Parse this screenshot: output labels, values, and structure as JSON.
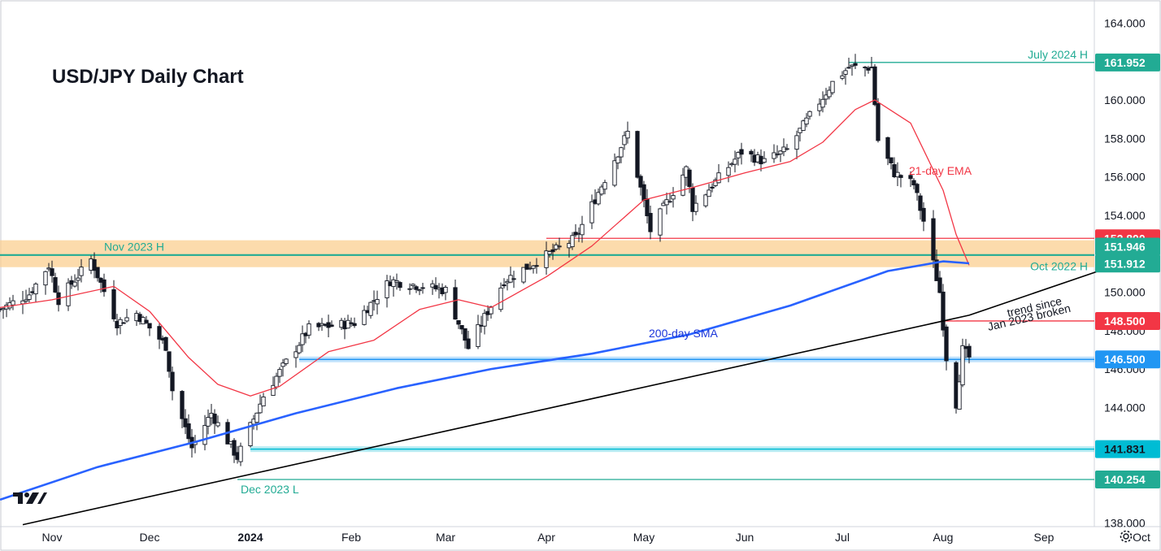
{
  "chart_data": {
    "type": "candlestick",
    "title": "USD/JPY Daily Chart",
    "ylim": [
      137.8,
      165.2
    ],
    "y_ticks": [
      138,
      140,
      142,
      144,
      146,
      148,
      150,
      152,
      154,
      156,
      158,
      160,
      162,
      164
    ],
    "y_tick_labels": [
      "138.000",
      "140.000",
      "142.000",
      "144.000",
      "146.000",
      "148.000",
      "150.000",
      "152.000",
      "154.000",
      "156.000",
      "158.000",
      "160.000",
      "162.000",
      "164.000"
    ],
    "x_range": [
      "2023-10-16",
      "2024-10-07"
    ],
    "x_ticks": [
      {
        "date": "2023-11-01",
        "label": "Nov"
      },
      {
        "date": "2023-12-01",
        "label": "Dec"
      },
      {
        "date": "2024-01-01",
        "label": "2024"
      },
      {
        "date": "2024-02-01",
        "label": "Feb"
      },
      {
        "date": "2024-03-01",
        "label": "Mar"
      },
      {
        "date": "2024-04-01",
        "label": "Apr"
      },
      {
        "date": "2024-05-01",
        "label": "May"
      },
      {
        "date": "2024-06-01",
        "label": "Jun"
      },
      {
        "date": "2024-07-01",
        "label": "Jul"
      },
      {
        "date": "2024-08-01",
        "label": "Aug"
      },
      {
        "date": "2024-09-01",
        "label": "Sep"
      },
      {
        "date": "2024-10-01",
        "label": "Oct"
      }
    ],
    "close_path": [
      {
        "date": "2023-10-16",
        "value": 149.1
      },
      {
        "date": "2023-10-25",
        "value": 149.9
      },
      {
        "date": "2023-10-31",
        "value": 151.4
      },
      {
        "date": "2023-11-03",
        "value": 149.6
      },
      {
        "date": "2023-11-13",
        "value": 151.7
      },
      {
        "date": "2023-11-21",
        "value": 148.4
      },
      {
        "date": "2023-11-27",
        "value": 148.9
      },
      {
        "date": "2023-12-06",
        "value": 147.2
      },
      {
        "date": "2023-12-08",
        "value": 144.9
      },
      {
        "date": "2023-12-14",
        "value": 141.9
      },
      {
        "date": "2023-12-20",
        "value": 143.7
      },
      {
        "date": "2023-12-28",
        "value": 141.4
      },
      {
        "date": "2024-01-05",
        "value": 144.6
      },
      {
        "date": "2024-01-19",
        "value": 148.1
      },
      {
        "date": "2024-02-02",
        "value": 148.4
      },
      {
        "date": "2024-02-13",
        "value": 150.6
      },
      {
        "date": "2024-03-01",
        "value": 150.1
      },
      {
        "date": "2024-03-08",
        "value": 147.1
      },
      {
        "date": "2024-03-19",
        "value": 150.6
      },
      {
        "date": "2024-04-10",
        "value": 152.8
      },
      {
        "date": "2024-04-26",
        "value": 158.3
      },
      {
        "date": "2024-05-03",
        "value": 153.2
      },
      {
        "date": "2024-05-14",
        "value": 156.4
      },
      {
        "date": "2024-05-16",
        "value": 154.4
      },
      {
        "date": "2024-05-31",
        "value": 157.3
      },
      {
        "date": "2024-06-07",
        "value": 156.8
      },
      {
        "date": "2024-06-14",
        "value": 157.4
      },
      {
        "date": "2024-06-28",
        "value": 160.9
      },
      {
        "date": "2024-07-03",
        "value": 161.7
      },
      {
        "date": "2024-07-10",
        "value": 161.7
      },
      {
        "date": "2024-07-12",
        "value": 157.9
      },
      {
        "date": "2024-07-17",
        "value": 156.2
      },
      {
        "date": "2024-07-23",
        "value": 155.6
      },
      {
        "date": "2024-07-26",
        "value": 153.7
      },
      {
        "date": "2024-07-31",
        "value": 150.0
      },
      {
        "date": "2024-08-02",
        "value": 146.6
      },
      {
        "date": "2024-08-05",
        "value": 144.2
      },
      {
        "date": "2024-08-07",
        "value": 147.0
      },
      {
        "date": "2024-08-09",
        "value": 146.6
      }
    ],
    "series": [
      {
        "name": "21-day EMA",
        "color": "#f23645",
        "points": [
          {
            "date": "2023-10-16",
            "value": 149.2
          },
          {
            "date": "2023-11-01",
            "value": 149.6
          },
          {
            "date": "2023-11-20",
            "value": 150.3
          },
          {
            "date": "2023-12-01",
            "value": 149.0
          },
          {
            "date": "2023-12-13",
            "value": 146.6
          },
          {
            "date": "2023-12-22",
            "value": 145.2
          },
          {
            "date": "2024-01-01",
            "value": 144.6
          },
          {
            "date": "2024-01-10",
            "value": 145.1
          },
          {
            "date": "2024-01-25",
            "value": 146.9
          },
          {
            "date": "2024-02-08",
            "value": 147.5
          },
          {
            "date": "2024-02-22",
            "value": 149.1
          },
          {
            "date": "2024-03-05",
            "value": 149.6
          },
          {
            "date": "2024-03-15",
            "value": 149.2
          },
          {
            "date": "2024-04-01",
            "value": 150.8
          },
          {
            "date": "2024-04-15",
            "value": 152.4
          },
          {
            "date": "2024-05-01",
            "value": 154.8
          },
          {
            "date": "2024-05-15",
            "value": 155.4
          },
          {
            "date": "2024-06-01",
            "value": 156.2
          },
          {
            "date": "2024-06-15",
            "value": 156.8
          },
          {
            "date": "2024-06-25",
            "value": 157.8
          },
          {
            "date": "2024-07-05",
            "value": 159.5
          },
          {
            "date": "2024-07-11",
            "value": 160.0
          },
          {
            "date": "2024-07-22",
            "value": 158.8
          },
          {
            "date": "2024-08-01",
            "value": 155.3
          },
          {
            "date": "2024-08-05",
            "value": 153.0
          },
          {
            "date": "2024-08-09",
            "value": 151.4
          }
        ]
      },
      {
        "name": "200-day SMA",
        "color": "#2962ff",
        "points": [
          {
            "date": "2023-10-16",
            "value": 139.2
          },
          {
            "date": "2023-11-15",
            "value": 140.9
          },
          {
            "date": "2023-12-15",
            "value": 142.2
          },
          {
            "date": "2024-01-15",
            "value": 143.7
          },
          {
            "date": "2024-02-15",
            "value": 145.0
          },
          {
            "date": "2024-03-15",
            "value": 146.0
          },
          {
            "date": "2024-04-15",
            "value": 146.8
          },
          {
            "date": "2024-05-15",
            "value": 147.8
          },
          {
            "date": "2024-06-15",
            "value": 149.3
          },
          {
            "date": "2024-07-15",
            "value": 151.1
          },
          {
            "date": "2024-08-01",
            "value": 151.6
          },
          {
            "date": "2024-08-09",
            "value": 151.5
          }
        ]
      },
      {
        "name": "trend since Jan 2023",
        "color": "#000000",
        "points": [
          {
            "date": "2023-10-23",
            "value": 137.9
          },
          {
            "date": "2024-08-09",
            "value": 148.8
          },
          {
            "date": "2024-09-30",
            "value": 151.8
          }
        ]
      }
    ],
    "levels": [
      {
        "value": 161.952,
        "label": "161.952",
        "note": "July 2024 H",
        "color": "#22ab94",
        "start": "2024-07-03"
      },
      {
        "value": 152.8,
        "label": "152.800",
        "note": "",
        "color": "#f23645",
        "start": "2024-04-01"
      },
      {
        "value": 151.946,
        "label": "151.946",
        "note": "Nov 2023 H",
        "color": "#22ab94",
        "start": "2023-10-16"
      },
      {
        "value": 151.912,
        "label": "151.912",
        "note": "Oct 2022 H",
        "color": "#22ab94",
        "start": "2023-10-16"
      },
      {
        "value": 148.5,
        "label": "148.500",
        "note": "",
        "color": "#f23645",
        "start": "2024-08-01"
      },
      {
        "value": 146.5,
        "label": "146.500",
        "note": "",
        "color": "#2196f3",
        "start": "2024-01-16"
      },
      {
        "value": 141.831,
        "label": "141.831",
        "note": "",
        "color": "#00bcd4",
        "start": "2024-01-01"
      },
      {
        "value": 140.254,
        "label": "140.254",
        "note": "Dec 2023 L",
        "color": "#22ab94",
        "start": "2023-12-28"
      }
    ],
    "resistance_zone": [
      151.3,
      152.7
    ],
    "annotations": [
      "21-day EMA",
      "200-day SMA",
      "trend since",
      "Jan 2023 broken"
    ]
  },
  "ui": {
    "settings_icon": "gear-icon",
    "logo": "tradingview-logo"
  }
}
